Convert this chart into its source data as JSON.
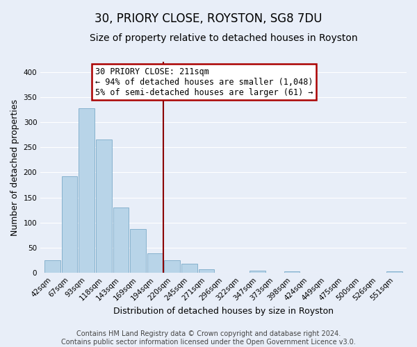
{
  "title": "30, PRIORY CLOSE, ROYSTON, SG8 7DU",
  "subtitle": "Size of property relative to detached houses in Royston",
  "xlabel": "Distribution of detached houses by size in Royston",
  "ylabel": "Number of detached properties",
  "bar_labels": [
    "42sqm",
    "67sqm",
    "93sqm",
    "118sqm",
    "143sqm",
    "169sqm",
    "194sqm",
    "220sqm",
    "245sqm",
    "271sqm",
    "296sqm",
    "322sqm",
    "347sqm",
    "373sqm",
    "398sqm",
    "424sqm",
    "449sqm",
    "475sqm",
    "500sqm",
    "526sqm",
    "551sqm"
  ],
  "bar_heights": [
    25,
    193,
    328,
    266,
    130,
    87,
    39,
    25,
    18,
    8,
    0,
    0,
    4,
    0,
    3,
    0,
    0,
    0,
    0,
    0,
    3
  ],
  "bar_color": "#b8d4e8",
  "bar_edge_color": "#7aaac8",
  "vline_color": "#8b0000",
  "ylim": [
    0,
    420
  ],
  "yticks": [
    0,
    50,
    100,
    150,
    200,
    250,
    300,
    350,
    400
  ],
  "annotation_title": "30 PRIORY CLOSE: 211sqm",
  "annotation_line1": "← 94% of detached houses are smaller (1,048)",
  "annotation_line2": "5% of semi-detached houses are larger (61) →",
  "annotation_box_facecolor": "#ffffff",
  "annotation_box_edgecolor": "#aa0000",
  "footer_line1": "Contains HM Land Registry data © Crown copyright and database right 2024.",
  "footer_line2": "Contains public sector information licensed under the Open Government Licence v3.0.",
  "fig_background_color": "#e8eef8",
  "axes_background_color": "#e8eef8",
  "grid_color": "#ffffff",
  "title_fontsize": 12,
  "subtitle_fontsize": 10,
  "axis_label_fontsize": 9,
  "tick_fontsize": 7.5,
  "annotation_fontsize": 8.5,
  "footer_fontsize": 7
}
